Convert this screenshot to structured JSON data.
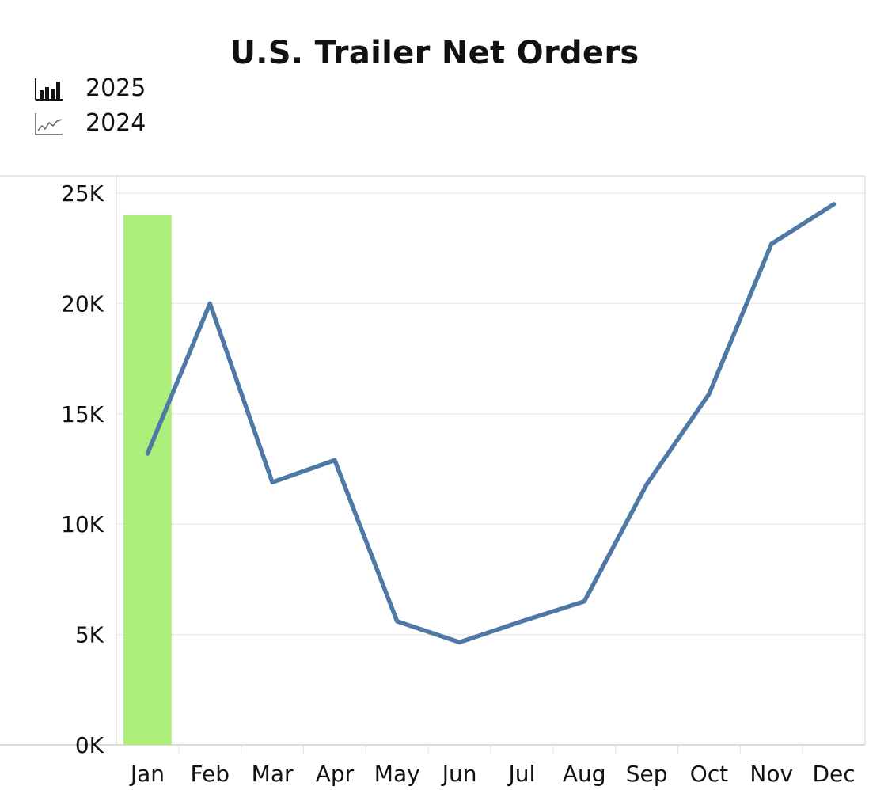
{
  "chart_data": {
    "type": "bar+line",
    "title": "U.S. Trailer Net Orders",
    "categories": [
      "Jan",
      "Feb",
      "Mar",
      "Apr",
      "May",
      "Jun",
      "Jul",
      "Aug",
      "Sep",
      "Oct",
      "Nov",
      "Dec"
    ],
    "series": [
      {
        "name": "2025",
        "type": "bar",
        "values": [
          24000,
          null,
          null,
          null,
          null,
          null,
          null,
          null,
          null,
          null,
          null,
          null
        ],
        "color": "#aeee7a"
      },
      {
        "name": "2024",
        "type": "line",
        "values": [
          13200,
          20000,
          11900,
          12900,
          5600,
          4650,
          5600,
          6500,
          11800,
          15900,
          22700,
          24500
        ],
        "color": "#4e79a7"
      }
    ],
    "y_ticks": [
      "0K",
      "5K",
      "10K",
      "15K",
      "20K",
      "25K"
    ],
    "ylim": [
      0,
      25000
    ],
    "legend_position": "top-left",
    "grid": true
  },
  "legend": {
    "items": [
      {
        "label": "2025",
        "icon": "bar-chart-icon"
      },
      {
        "label": "2024",
        "icon": "line-chart-icon"
      }
    ]
  }
}
